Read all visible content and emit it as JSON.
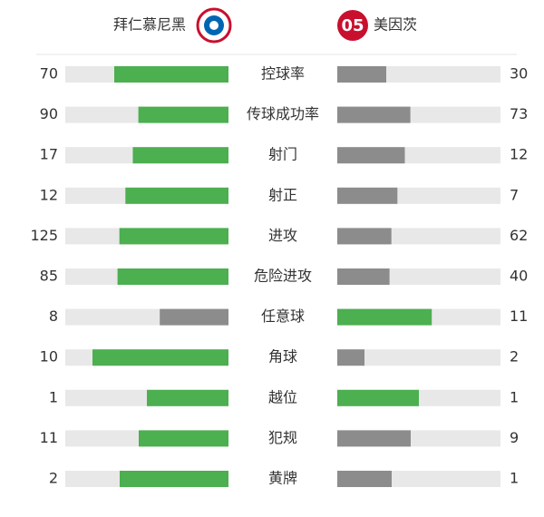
{
  "header": {
    "home_team": "拜仁慕尼黑",
    "away_team": "美因茨"
  },
  "colors": {
    "leading": "#4caf50",
    "trailing": "#8c8c8c",
    "track": "#e8e8e8"
  },
  "rows": [
    {
      "label": "控球率",
      "home": 70,
      "away": 30
    },
    {
      "label": "传球成功率",
      "home": 90,
      "away": 73
    },
    {
      "label": "射门",
      "home": 17,
      "away": 12
    },
    {
      "label": "射正",
      "home": 12,
      "away": 7
    },
    {
      "label": "进攻",
      "home": 125,
      "away": 62
    },
    {
      "label": "危险进攻",
      "home": 85,
      "away": 40
    },
    {
      "label": "任意球",
      "home": 8,
      "away": 11
    },
    {
      "label": "角球",
      "home": 10,
      "away": 2
    },
    {
      "label": "越位",
      "home": 1,
      "away": 1
    },
    {
      "label": "犯规",
      "home": 11,
      "away": 9
    },
    {
      "label": "黄牌",
      "home": 2,
      "away": 1
    }
  ]
}
